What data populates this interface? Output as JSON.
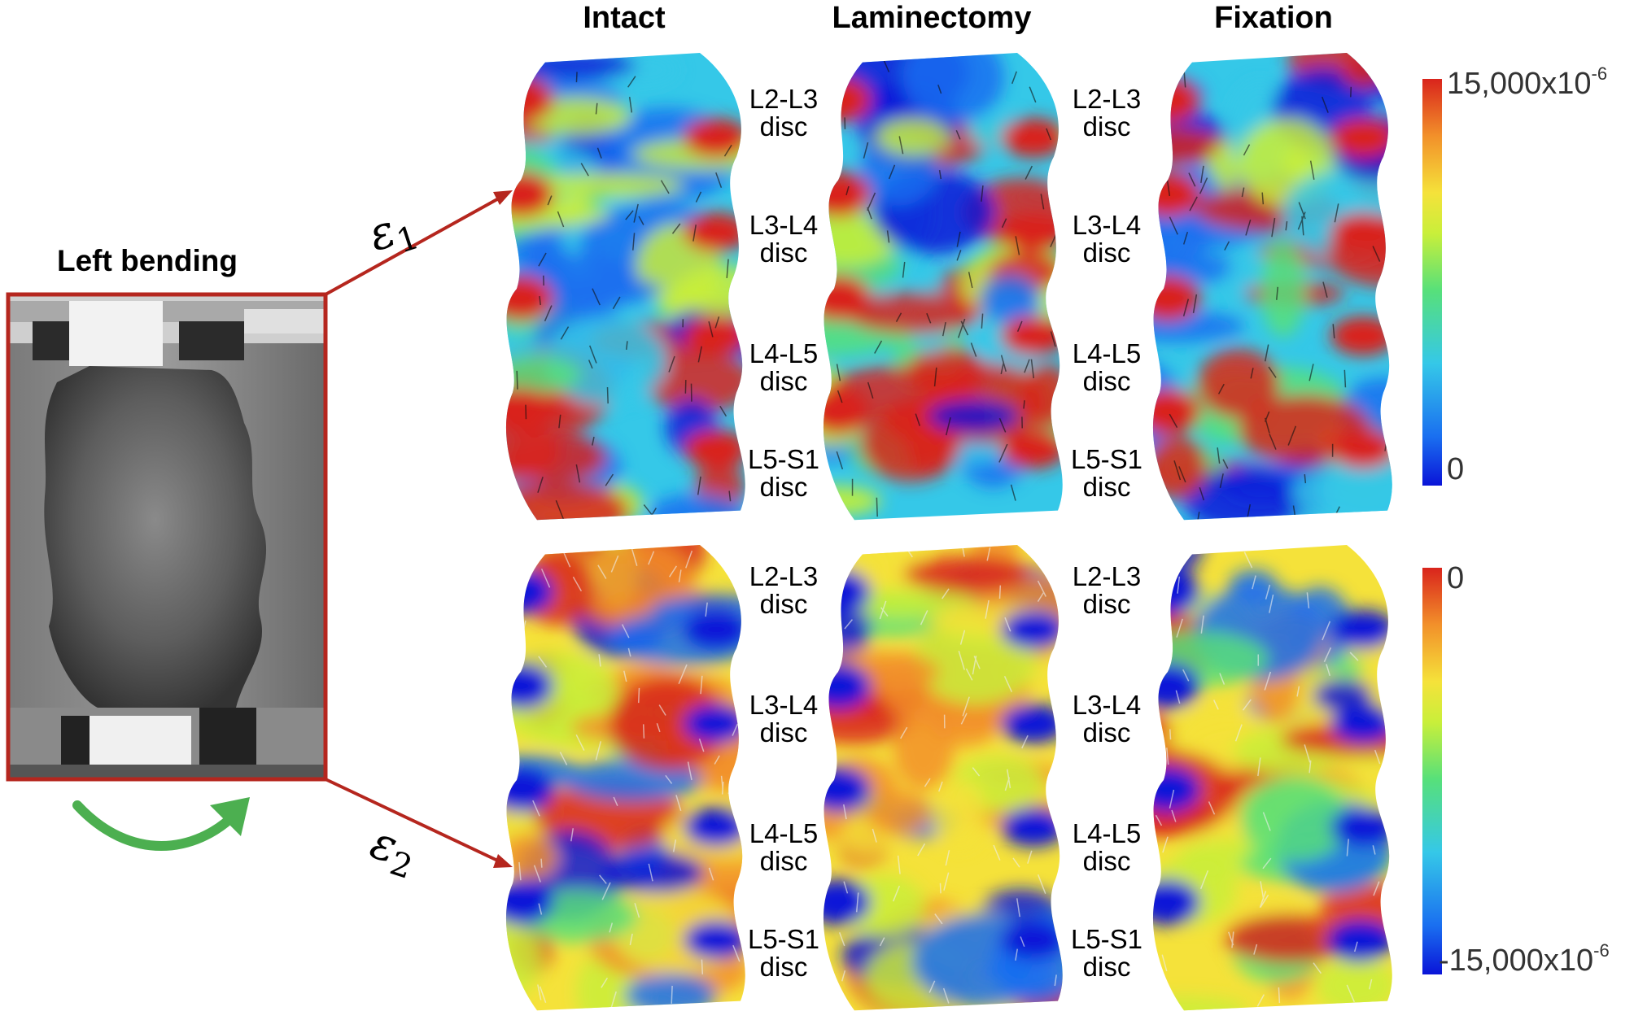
{
  "photo": {
    "title": "Left bending"
  },
  "columns": [
    {
      "label": "Intact"
    },
    {
      "label": "Laminectomy"
    },
    {
      "label": "Fixation"
    }
  ],
  "strains": {
    "e1": {
      "symbol": "ε",
      "index": "1"
    },
    "e2": {
      "symbol": "ε",
      "index": "2"
    }
  },
  "discs": [
    {
      "level": "L2-L3",
      "word": "disc"
    },
    {
      "level": "L3-L4",
      "word": "disc"
    },
    {
      "level": "L4-L5",
      "word": "disc"
    },
    {
      "level": "L5-S1",
      "word": "disc"
    }
  ],
  "colorbar_top": {
    "max_label": "15,000x10",
    "max_exp": "-6",
    "min_label": "0"
  },
  "colorbar_bottom": {
    "max_label": "0",
    "min_label": "-15,000x10",
    "min_exp": "-6"
  },
  "colors": {
    "frame": "#b5261e",
    "bend_arrow": "#4caf50",
    "jet": [
      "#0a14d8",
      "#1a6ff0",
      "#35c8e8",
      "#57e07a",
      "#c9ef3a",
      "#f5e23a",
      "#f2902a",
      "#d9241c"
    ]
  }
}
